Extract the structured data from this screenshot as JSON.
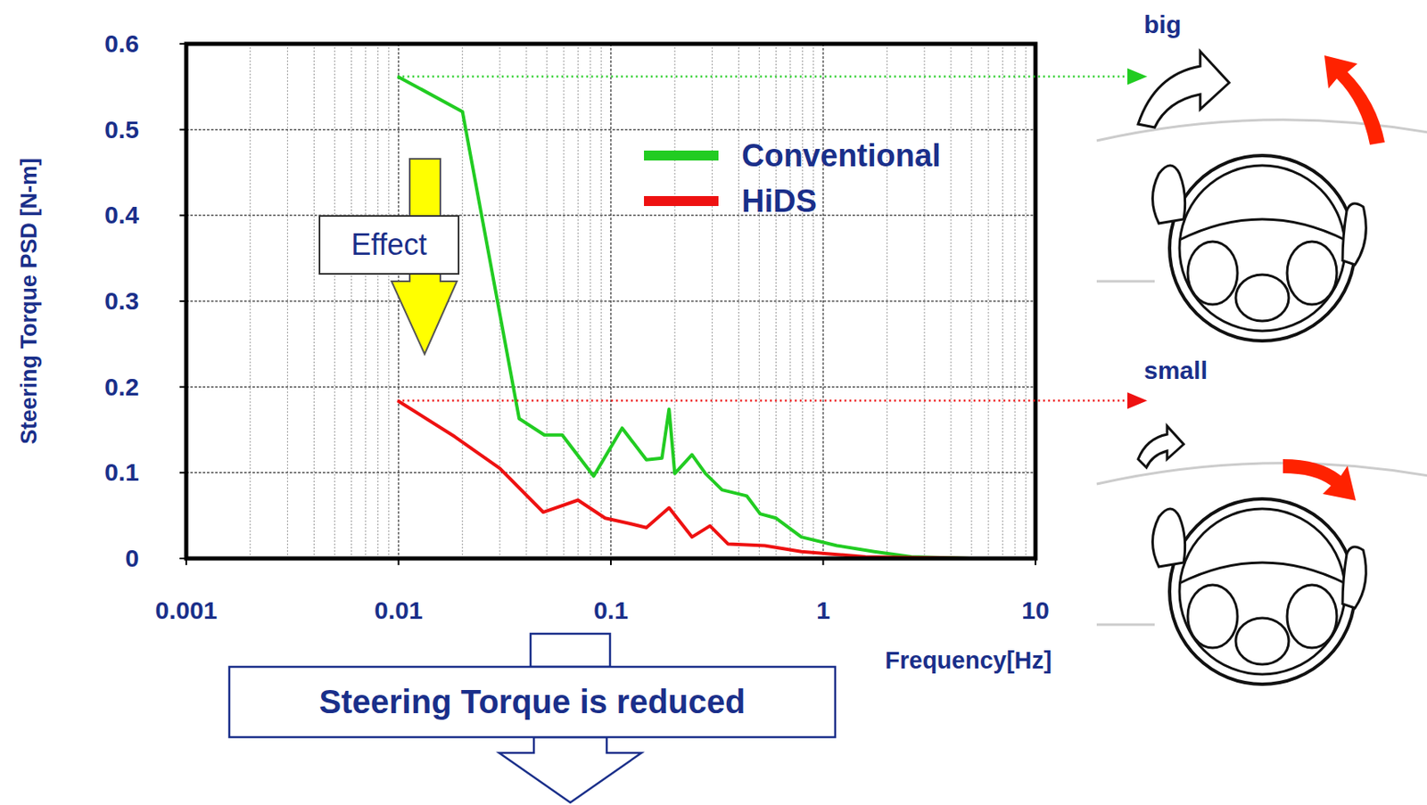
{
  "chart_data": {
    "type": "line",
    "x_label": "Frequency[Hz]",
    "y_label": "Steering Torque PSD [N-m]",
    "log": "x",
    "grid": true,
    "legend": "upper right",
    "xlim": [
      0.001,
      10
    ],
    "ylim": [
      0,
      0.6
    ],
    "xticks": [
      0.001,
      0.01,
      0.1,
      1,
      10
    ],
    "yticks": [
      0,
      0.1,
      0.2,
      0.3,
      0.4,
      0.5,
      0.6
    ],
    "series": [
      {
        "name": "Conventional",
        "color": "#22cc22",
        "x": [
          0.0099,
          0.02,
          0.037,
          0.0486,
          0.059,
          0.083,
          0.113,
          0.147,
          0.174,
          0.188,
          0.2,
          0.241,
          0.279,
          0.334,
          0.436,
          0.505,
          0.6,
          0.79,
          1.16,
          1.74,
          2.6,
          4.9
        ],
        "values": [
          0.562,
          0.521,
          0.163,
          0.144,
          0.144,
          0.096,
          0.152,
          0.115,
          0.117,
          0.174,
          0.099,
          0.121,
          0.099,
          0.08,
          0.073,
          0.052,
          0.047,
          0.025,
          0.015,
          0.008,
          0.002,
          0
        ]
      },
      {
        "name": "HiDS",
        "color": "#ee1111",
        "x": [
          0.0099,
          0.0184,
          0.03,
          0.048,
          0.07,
          0.094,
          0.121,
          0.147,
          0.188,
          0.241,
          0.293,
          0.356,
          0.53,
          0.79,
          1.58,
          4.9
        ],
        "values": [
          0.184,
          0.142,
          0.105,
          0.054,
          0.068,
          0.047,
          0.041,
          0.036,
          0.059,
          0.025,
          0.038,
          0.017,
          0.015,
          0.008,
          0.002,
          0
        ]
      }
    ],
    "annotations": [
      "Effect",
      "Steering Torque is reduced",
      "big",
      "small"
    ]
  }
}
